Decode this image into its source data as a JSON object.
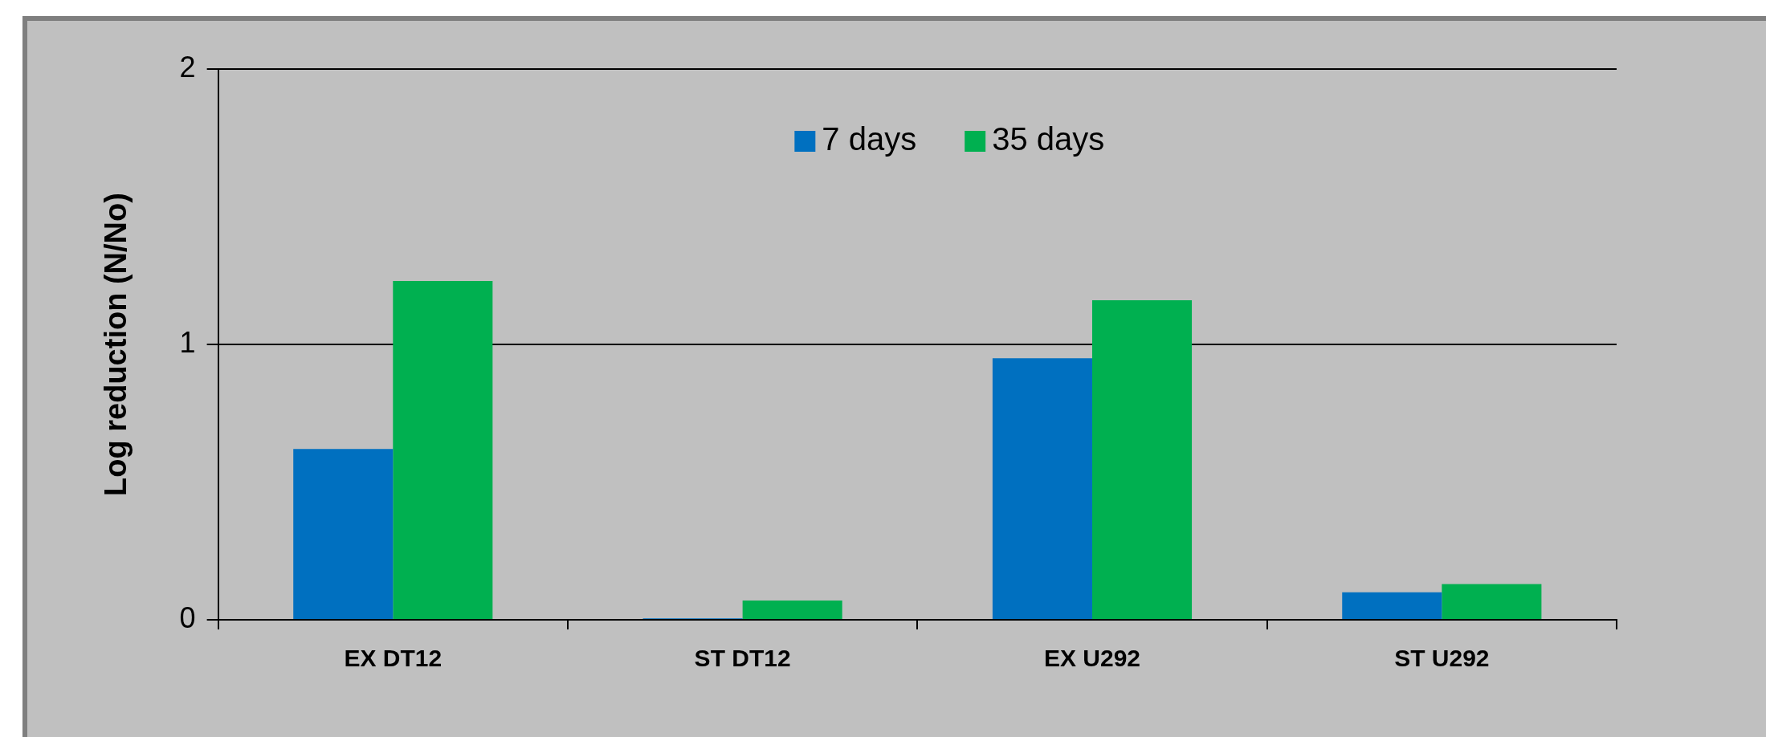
{
  "chart_data": {
    "type": "bar",
    "ylabel": "Log reduction (N/No)",
    "categories": [
      "EX DT12",
      "ST DT12",
      "EX U292",
      "ST U292"
    ],
    "series": [
      {
        "name": "7 days",
        "color": "#0070c0",
        "values": [
          0.62,
          0.005,
          0.95,
          0.1
        ]
      },
      {
        "name": "35 days",
        "color": "#00b050",
        "values": [
          1.23,
          0.07,
          1.16,
          0.13
        ]
      }
    ],
    "ylim": [
      0,
      2
    ],
    "yticks": [
      0,
      1,
      2
    ],
    "grid": "y",
    "legend": "top"
  }
}
